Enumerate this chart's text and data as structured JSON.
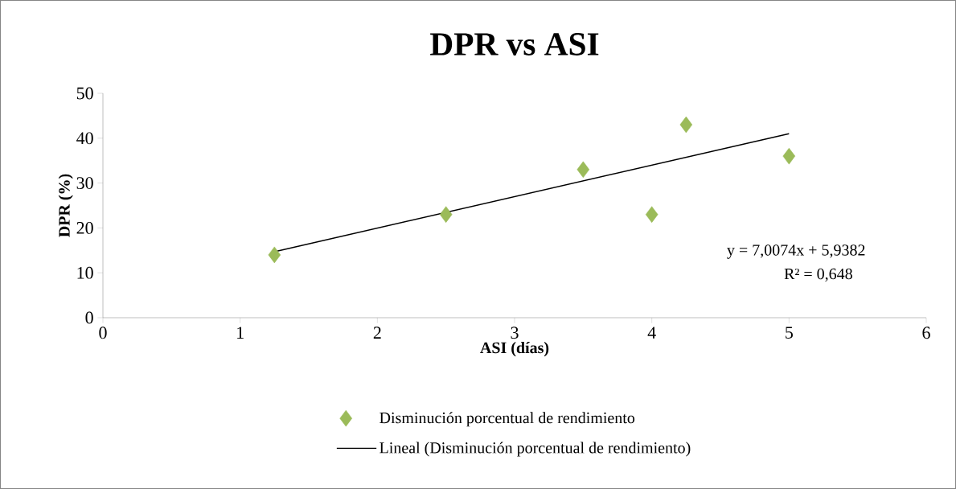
{
  "chart_data": {
    "type": "scatter",
    "title": "DPR vs ASI",
    "xlabel": "ASI (días)",
    "ylabel": "DPR (%)",
    "xlim": [
      0,
      6
    ],
    "ylim": [
      0,
      50
    ],
    "xticks": [
      0,
      1,
      2,
      3,
      4,
      5,
      6
    ],
    "yticks": [
      0,
      10,
      20,
      30,
      40,
      50
    ],
    "legend": "bottom",
    "series": [
      {
        "name": "Disminución porcentual de rendimiento",
        "marker": "diamond",
        "color": "#9bbb59",
        "x": [
          1.25,
          2.5,
          3.5,
          4,
          4.25,
          5
        ],
        "values": [
          14,
          23,
          33,
          23,
          43,
          36
        ]
      },
      {
        "name": "Lineal (Disminución porcentual de rendimiento)",
        "type": "line",
        "marker": "none",
        "line_style": "solid",
        "color": "#000000",
        "x": [
          1.25,
          5
        ],
        "values": [
          14.7,
          41.0
        ]
      }
    ],
    "annotations": [
      "y = 7,0074x + 5,9382",
      "R² = 0,648"
    ]
  }
}
